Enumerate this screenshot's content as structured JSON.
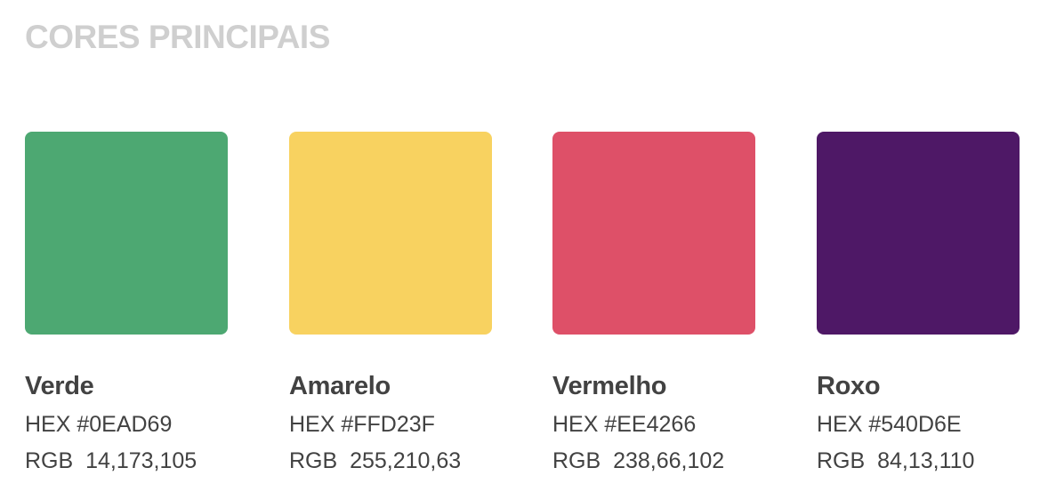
{
  "title": "CORES PRINCIPAIS",
  "colors": [
    {
      "name": "Verde",
      "hex_text": "HEX #0EAD69",
      "rgb_text": "RGB  14,173,105",
      "swatch": "#4DA872"
    },
    {
      "name": "Amarelo",
      "hex_text": "HEX #FFD23F",
      "rgb_text": "RGB  255,210,63",
      "swatch": "#F8D260"
    },
    {
      "name": "Vermelho",
      "hex_text": "HEX #EE4266",
      "rgb_text": "RGB  238,66,102",
      "swatch": "#DE5068"
    },
    {
      "name": "Roxo",
      "hex_text": "HEX #540D6E",
      "rgb_text": "RGB  84,13,110",
      "swatch": "#4E1866"
    }
  ]
}
